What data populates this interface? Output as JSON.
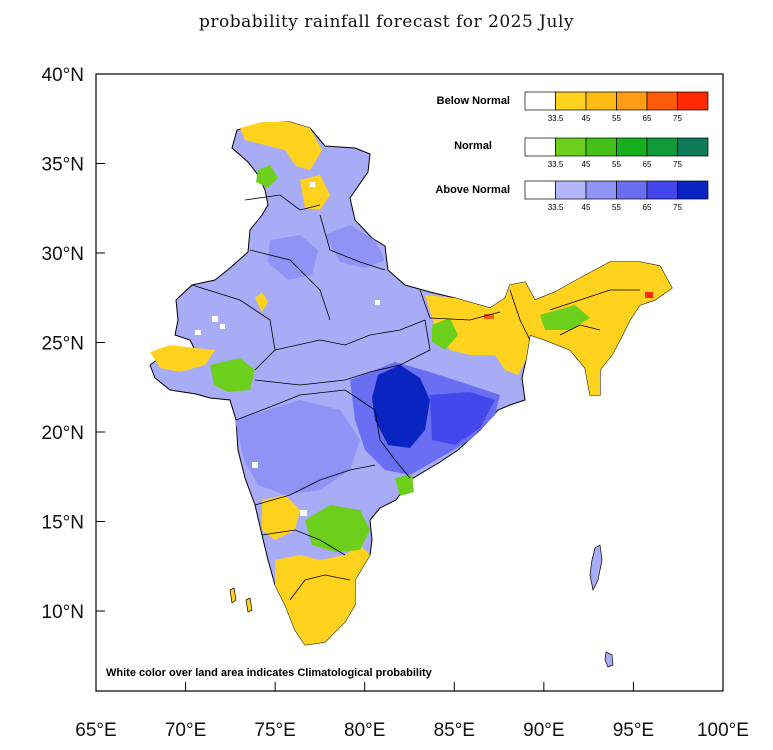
{
  "title": "probability rainfall forecast for 2025 July",
  "axes": {
    "x_ticks": [
      "65°E",
      "70°E",
      "75°E",
      "80°E",
      "85°E",
      "90°E",
      "95°E",
      "100°E"
    ],
    "y_ticks": [
      "40°N",
      "35°N",
      "30°N",
      "25°N",
      "20°N",
      "15°N",
      "10°N"
    ]
  },
  "legend": [
    {
      "label": "Below Normal",
      "colors": [
        "#ffffff",
        "#ffd21e",
        "#ffbb12",
        "#ff9c14",
        "#ff5a0a",
        "#ff2a00"
      ],
      "ticks": [
        "33.5",
        "45",
        "55",
        "65",
        "75"
      ]
    },
    {
      "label": "Normal",
      "colors": [
        "#ffffff",
        "#6ccf1c",
        "#44c018",
        "#16b01e",
        "#109a3a",
        "#0e7a5a"
      ],
      "ticks": [
        "33.5",
        "45",
        "55",
        "65",
        "75"
      ]
    },
    {
      "label": "Above Normal",
      "colors": [
        "#ffffff",
        "#b3b6fa",
        "#8f93f6",
        "#6a6ef2",
        "#4448ec",
        "#0a24c2"
      ],
      "ticks": [
        "33.5",
        "45",
        "55",
        "65",
        "75"
      ]
    }
  ],
  "note": "White color over land area indicates Climatological probability"
}
